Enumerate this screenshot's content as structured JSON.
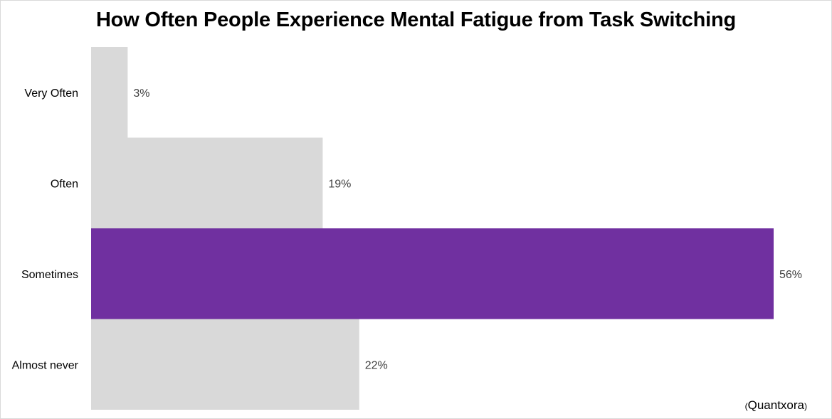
{
  "chart_data": {
    "type": "bar",
    "orientation": "horizontal",
    "title": "How Often People Experience Mental Fatigue from Task Switching",
    "categories": [
      "Very Often",
      "Often",
      "Sometimes",
      "Almost never"
    ],
    "values": [
      3,
      19,
      56,
      22
    ],
    "value_labels": [
      "3%",
      "19%",
      "56%",
      "22%"
    ],
    "xlim": [
      0,
      56
    ],
    "xlabel": "",
    "ylabel": "",
    "grid": false,
    "highlight_category": "Sometimes",
    "colors": {
      "default_bar": "#d9d9d9",
      "highlight_bar": "#7030a0",
      "label_text": "#404040",
      "category_text": "#000000"
    }
  },
  "source": "Quantxora"
}
